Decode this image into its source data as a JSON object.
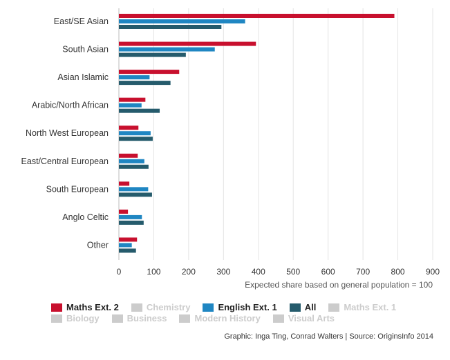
{
  "chart_data": {
    "type": "bar",
    "orientation": "horizontal",
    "categories": [
      "East/SE Asian",
      "South Asian",
      "Asian Islamic",
      "Arabic/North African",
      "North West European",
      "East/Central European",
      "South European",
      "Anglo Celtic",
      "Other"
    ],
    "series": [
      {
        "name": "Maths Ext. 2",
        "color": "#c8102e",
        "values": [
          790,
          393,
          173,
          76,
          56,
          54,
          30,
          26,
          52
        ]
      },
      {
        "name": "English Ext. 1",
        "color": "#1f86c2",
        "values": [
          362,
          275,
          88,
          65,
          91,
          73,
          84,
          66,
          37
        ]
      },
      {
        "name": "All",
        "color": "#255b6c",
        "values": [
          294,
          192,
          148,
          117,
          97,
          85,
          95,
          71,
          49
        ]
      }
    ],
    "xlabel": "Expected share based on general population = 100",
    "xlim": [
      0,
      900
    ],
    "xticks": [
      "0",
      "100",
      "200",
      "300",
      "400",
      "500",
      "600",
      "700",
      "800",
      "900"
    ],
    "grid": true,
    "legend_position": "bottom"
  },
  "legend": {
    "row1": [
      {
        "label": "Maths Ext. 2",
        "color": "#c8102e",
        "active": true
      },
      {
        "label": "Chemistry",
        "color": "#cccccc",
        "active": false
      },
      {
        "label": "English Ext. 1",
        "color": "#1f86c2",
        "active": true
      },
      {
        "label": "All",
        "color": "#255b6c",
        "active": true
      },
      {
        "label": "Maths Ext. 1",
        "color": "#cccccc",
        "active": false
      }
    ],
    "row2": [
      {
        "label": "Biology",
        "color": "#cccccc",
        "active": false
      },
      {
        "label": "Business",
        "color": "#cccccc",
        "active": false
      },
      {
        "label": "Modern History",
        "color": "#cccccc",
        "active": false
      },
      {
        "label": "Visual Arts",
        "color": "#cccccc",
        "active": false
      }
    ]
  },
  "credit": "Graphic: Inga Ting, Conrad Walters | Source: OriginsInfo 2014"
}
